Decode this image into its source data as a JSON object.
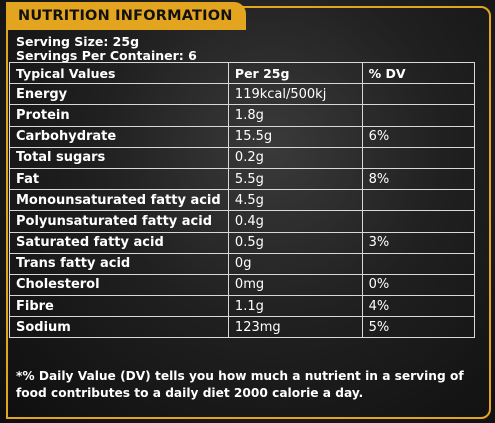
{
  "title": "NUTRITION INFORMATION",
  "serving_size": "Serving Size: 25g",
  "servings_per_container": "Servings Per Container: 6",
  "headers": [
    "Typical Values",
    "Per 25g",
    "% DV"
  ],
  "rows": [
    {
      "name": "Energy",
      "per": "119kcal/500kj",
      "dv": ""
    },
    {
      "name": "Protein",
      "per": "1.8g",
      "dv": ""
    },
    {
      "name": "Carbohydrate",
      "per": "15.5g",
      "dv": "6%"
    },
    {
      "name": "Total sugars",
      "per": "0.2g",
      "dv": ""
    },
    {
      "name": "Fat",
      "per": "5.5g",
      "dv": "8%"
    },
    {
      "name": "Monounsaturated fatty acid",
      "per": "4.5g",
      "dv": ""
    },
    {
      "name": "Polyunsaturated fatty acid",
      "per": "0.4g",
      "dv": ""
    },
    {
      "name": "Saturated fatty acid",
      "per": "0.5g",
      "dv": "3%"
    },
    {
      "name": "Trans fatty acid",
      "per": "0g",
      "dv": ""
    },
    {
      "name": "Cholesterol",
      "per": "0mg",
      "dv": "0%"
    },
    {
      "name": "Fibre",
      "per": "1.1g",
      "dv": "4%"
    },
    {
      "name": "Sodium",
      "per": "123mg",
      "dv": "5%"
    }
  ],
  "footnote": "*% Daily Value (DV) tells you how much a nutrient in a serving of food contributes to a daily diet 2000 calorie a day.",
  "colors": {
    "accent": "#e3a41f",
    "background": "#1e1e1e",
    "text": "#ffffff"
  }
}
